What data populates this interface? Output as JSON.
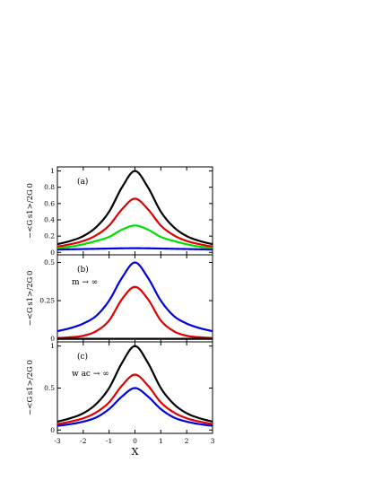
{
  "chart_data": [
    {
      "type": "line",
      "panel_label": "(a)",
      "ylabel": "−<G s1>/2G 0",
      "xlim": [
        -3,
        3
      ],
      "ylim": [
        -0.03,
        1.05
      ],
      "yticks": [
        0,
        0.2,
        0.4,
        0.6,
        0.8,
        1
      ],
      "ytick_labels": [
        "0",
        "0.2",
        "0.4",
        "0.6",
        "0.8",
        "1"
      ],
      "annotation": "",
      "series": [
        {
          "color": "#000000",
          "x": [
            -3,
            -2.5,
            -2,
            -1.5,
            -1,
            -0.5,
            0,
            0.5,
            1,
            1.5,
            2,
            2.5,
            3
          ],
          "values": [
            0.1,
            0.14,
            0.2,
            0.31,
            0.5,
            0.8,
            1.0,
            0.8,
            0.5,
            0.31,
            0.2,
            0.14,
            0.1
          ]
        },
        {
          "color": "#e00000",
          "x": [
            -3,
            -2.5,
            -2,
            -1.5,
            -1,
            -0.5,
            0,
            0.5,
            1,
            1.5,
            2,
            2.5,
            3
          ],
          "values": [
            0.07,
            0.1,
            0.14,
            0.21,
            0.33,
            0.53,
            0.66,
            0.53,
            0.33,
            0.21,
            0.14,
            0.1,
            0.07
          ]
        },
        {
          "color": "#00e000",
          "x": [
            -3,
            -2.5,
            -2,
            -1.5,
            -1,
            -0.5,
            0,
            0.5,
            1,
            1.5,
            2,
            2.5,
            3
          ],
          "values": [
            0.05,
            0.07,
            0.1,
            0.14,
            0.19,
            0.28,
            0.33,
            0.28,
            0.19,
            0.14,
            0.1,
            0.07,
            0.05
          ]
        },
        {
          "color": "#0000e0",
          "x": [
            -3,
            -2.5,
            -2,
            -1.5,
            -1,
            -0.5,
            0,
            0.5,
            1,
            1.5,
            2,
            2.5,
            3
          ],
          "values": [
            0.035,
            0.038,
            0.041,
            0.044,
            0.047,
            0.05,
            0.051,
            0.05,
            0.047,
            0.044,
            0.041,
            0.038,
            0.035
          ]
        }
      ]
    },
    {
      "type": "line",
      "panel_label": "(b)",
      "ylabel": "−<G s1>/2G 0",
      "xlim": [
        -3,
        3
      ],
      "ylim": [
        -0.02,
        0.55
      ],
      "yticks": [
        0,
        0.25,
        0.5
      ],
      "ytick_labels": [
        "0",
        "0.25",
        "0.5"
      ],
      "annotation": "m → ∞",
      "series": [
        {
          "color": "#0000e0",
          "x": [
            -3,
            -2.5,
            -2,
            -1.5,
            -1,
            -0.5,
            0,
            0.5,
            1,
            1.5,
            2,
            2.5,
            3
          ],
          "values": [
            0.05,
            0.07,
            0.1,
            0.15,
            0.25,
            0.4,
            0.5,
            0.4,
            0.25,
            0.15,
            0.1,
            0.07,
            0.05
          ]
        },
        {
          "color": "#e00000",
          "x": [
            -3,
            -2.5,
            -2,
            -1.5,
            -1,
            -0.5,
            0,
            0.5,
            1,
            1.5,
            2,
            2.5,
            3
          ],
          "values": [
            0.005,
            0.01,
            0.02,
            0.05,
            0.12,
            0.26,
            0.34,
            0.26,
            0.12,
            0.05,
            0.02,
            0.01,
            0.005
          ]
        },
        {
          "color": "#000000",
          "x": [
            -3,
            3
          ],
          "values": [
            0,
            0
          ]
        }
      ]
    },
    {
      "type": "line",
      "panel_label": "(c)",
      "ylabel": "−<G s1>/2G 0",
      "xlabel": "X",
      "xlim": [
        -3,
        3
      ],
      "ylim": [
        -0.04,
        1.05
      ],
      "xticks": [
        -3,
        -2,
        -1,
        0,
        1,
        2,
        3
      ],
      "xtick_labels": [
        "-3",
        "-2",
        "-1",
        "0",
        "1",
        "2",
        "3"
      ],
      "yticks": [
        0,
        0.5,
        1
      ],
      "ytick_labels": [
        "0",
        "0.5",
        "1"
      ],
      "annotation": "w ac → ∞",
      "series": [
        {
          "color": "#000000",
          "x": [
            -3,
            -2.5,
            -2,
            -1.5,
            -1,
            -0.5,
            0,
            0.5,
            1,
            1.5,
            2,
            2.5,
            3
          ],
          "values": [
            0.1,
            0.14,
            0.2,
            0.31,
            0.5,
            0.8,
            1.0,
            0.8,
            0.5,
            0.31,
            0.2,
            0.14,
            0.1
          ]
        },
        {
          "color": "#e00000",
          "x": [
            -3,
            -2.5,
            -2,
            -1.5,
            -1,
            -0.5,
            0,
            0.5,
            1,
            1.5,
            2,
            2.5,
            3
          ],
          "values": [
            0.07,
            0.1,
            0.14,
            0.21,
            0.33,
            0.53,
            0.66,
            0.53,
            0.33,
            0.21,
            0.14,
            0.1,
            0.07
          ]
        },
        {
          "color": "#0000e0",
          "x": [
            -3,
            -2.5,
            -2,
            -1.5,
            -1,
            -0.5,
            0,
            0.5,
            1,
            1.5,
            2,
            2.5,
            3
          ],
          "values": [
            0.05,
            0.07,
            0.1,
            0.15,
            0.25,
            0.4,
            0.5,
            0.4,
            0.25,
            0.15,
            0.1,
            0.07,
            0.05
          ]
        }
      ]
    }
  ]
}
